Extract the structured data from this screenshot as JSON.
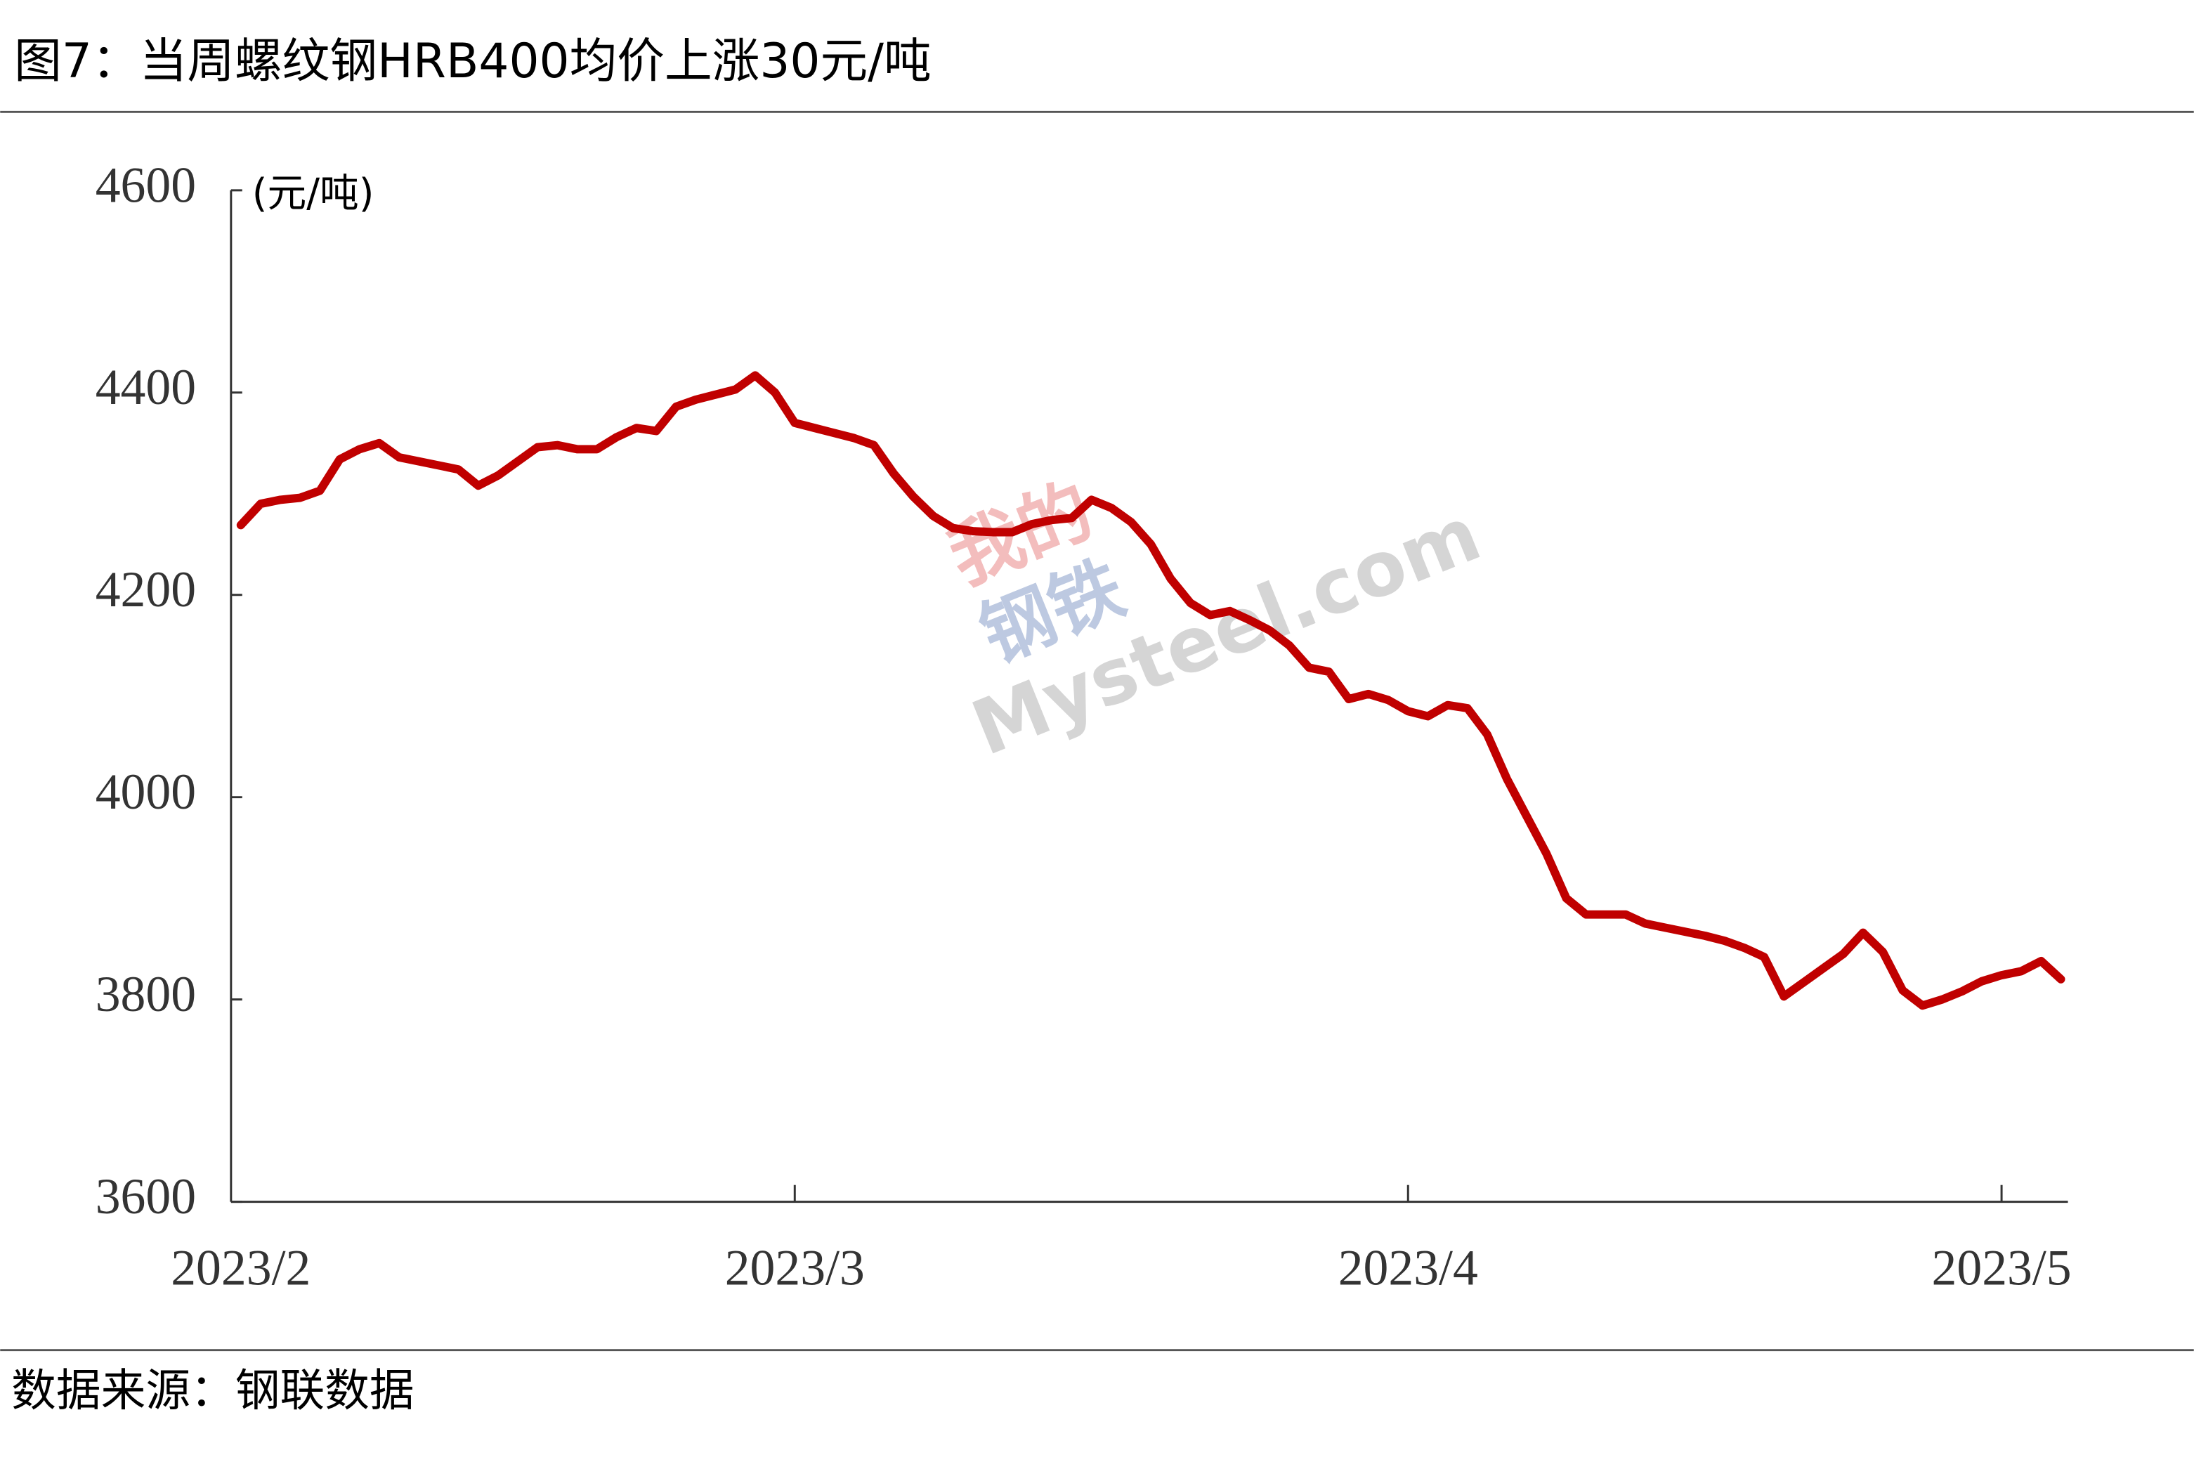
{
  "chart_data": {
    "type": "line",
    "title": "图7：当周螺纹钢HRB400均价上涨30元/吨",
    "y_label": "(元/吨)",
    "source": "数据来源：钢联数据",
    "watermark": [
      "我的",
      "钢铁",
      "Mysteel.com"
    ],
    "categories": [
      "2023/2",
      null,
      null,
      null,
      null,
      null,
      null,
      null,
      null,
      null,
      null,
      null,
      null,
      null,
      null,
      null,
      null,
      null,
      null,
      null,
      null,
      null,
      null,
      null,
      null,
      null,
      null,
      null,
      "2023/3",
      null,
      null,
      null,
      null,
      null,
      null,
      null,
      null,
      null,
      null,
      null,
      null,
      null,
      null,
      null,
      null,
      null,
      null,
      null,
      null,
      null,
      null,
      null,
      null,
      null,
      null,
      null,
      null,
      null,
      null,
      "2023/4",
      null,
      null,
      null,
      null,
      null,
      null,
      null,
      null,
      null,
      null,
      null,
      null,
      null,
      null,
      null,
      null,
      null,
      null,
      null,
      null,
      null,
      null,
      null,
      null,
      null,
      null,
      null,
      null,
      null,
      "2023/5",
      null,
      null,
      null
    ],
    "series": [
      {
        "color": "#c00000",
        "values": [
          4269,
          4290,
          4294,
          4296,
          4303,
          4334,
          4344,
          4350,
          4336,
          4332,
          4328,
          4324,
          4308,
          4318,
          4332,
          4346,
          4348,
          4344,
          4344,
          4356,
          4365,
          4362,
          4386,
          4393,
          4398,
          4403,
          4417,
          4400,
          4370,
          4365,
          4360,
          4355,
          4348,
          4320,
          4297,
          4278,
          4266,
          4263,
          4262,
          4262,
          4270,
          4274,
          4276,
          4294,
          4286,
          4272,
          4250,
          4216,
          4192,
          4180,
          4184,
          4175,
          4165,
          4150,
          4128,
          4124,
          4097,
          4102,
          4096,
          4085,
          4080,
          4091,
          4088,
          4062,
          4018,
          3981,
          3944,
          3900,
          3884,
          3884,
          3884,
          3875,
          3871,
          3867,
          3863,
          3858,
          3851,
          3842,
          3803,
          3817,
          3831,
          3845,
          3866,
          3847,
          3809,
          3794,
          3800,
          3808,
          3818,
          3824,
          3828,
          3838,
          3820
        ]
      }
    ],
    "ylim": [
      3600,
      4600
    ],
    "yticks": [
      3600,
      3800,
      4000,
      4200,
      4400,
      4600
    ]
  }
}
